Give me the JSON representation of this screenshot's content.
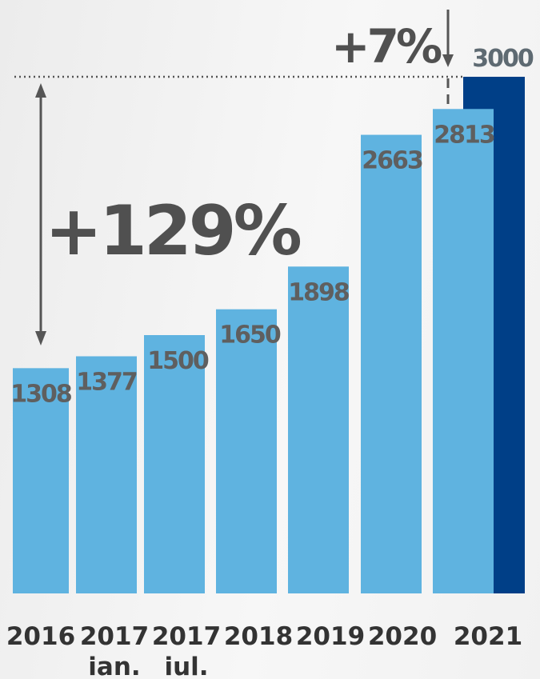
{
  "chart_data": {
    "type": "bar",
    "categories": [
      [
        "2016"
      ],
      [
        "2017",
        "ian."
      ],
      [
        "2017",
        "iul."
      ],
      [
        "2018"
      ],
      [
        "2019"
      ],
      [
        "2020"
      ],
      [
        "2021"
      ]
    ],
    "values": [
      1308,
      1377,
      1500,
      1650,
      1898,
      2663,
      2813
    ],
    "value_labels": [
      "1308",
      "1377",
      "1500",
      "1650",
      "1898",
      "2663",
      "2813"
    ],
    "target": {
      "category_index": 6,
      "value": 3000,
      "label": "3000"
    },
    "annotations": {
      "growth_total": "+129%",
      "growth_last": "+7%"
    },
    "ylim": [
      0,
      3000
    ],
    "grid": false,
    "colors": {
      "bar": "#5fb3e0",
      "target_bar": "#003f87",
      "value_text": "#5f5f5f",
      "target_text": "#5e6a72",
      "annotation": "#505050",
      "category_text": "#333333"
    }
  }
}
